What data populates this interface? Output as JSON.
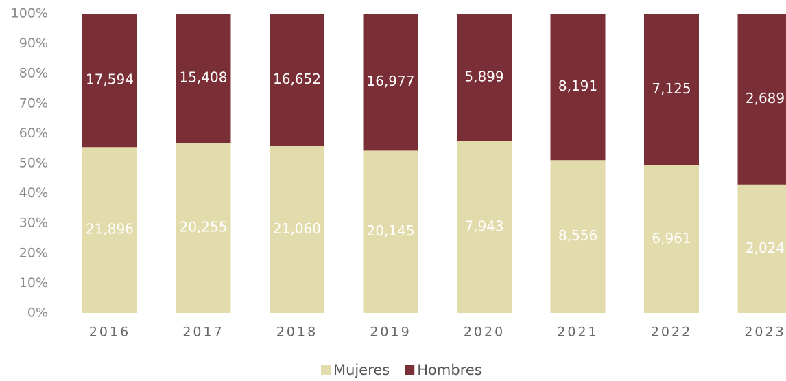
{
  "chart_data": {
    "type": "bar",
    "stacking": "percent",
    "categories": [
      "2016",
      "2017",
      "2018",
      "2019",
      "2020",
      "2021",
      "2022",
      "2023"
    ],
    "series": [
      {
        "name": "Mujeres",
        "color": "#e2dbab",
        "values": [
          21896,
          20255,
          21060,
          20145,
          7943,
          8556,
          6961,
          2024
        ],
        "value_labels": [
          "21,896",
          "20,255",
          "21,060",
          "20,145",
          "7,943",
          "8,556",
          "6,961",
          "2,024"
        ]
      },
      {
        "name": "Hombres",
        "color": "#7a2e35",
        "values": [
          17594,
          15408,
          16652,
          16977,
          5899,
          8191,
          7125,
          2689
        ],
        "value_labels": [
          "17,594",
          "15,408",
          "16,652",
          "16,977",
          "5,899",
          "8,191",
          "7,125",
          "2,689"
        ]
      }
    ],
    "ylim": [
      0,
      100
    ],
    "yticks": [
      {
        "value": 0,
        "label": "0%"
      },
      {
        "value": 10,
        "label": "10%"
      },
      {
        "value": 20,
        "label": "20%"
      },
      {
        "value": 30,
        "label": "30%"
      },
      {
        "value": 40,
        "label": "40%"
      },
      {
        "value": 50,
        "label": "50%"
      },
      {
        "value": 60,
        "label": "60%"
      },
      {
        "value": 70,
        "label": "70%"
      },
      {
        "value": 80,
        "label": "80%"
      },
      {
        "value": 90,
        "label": "90%"
      },
      {
        "value": 100,
        "label": "100%"
      }
    ],
    "grid": false,
    "legend": "bottom"
  }
}
